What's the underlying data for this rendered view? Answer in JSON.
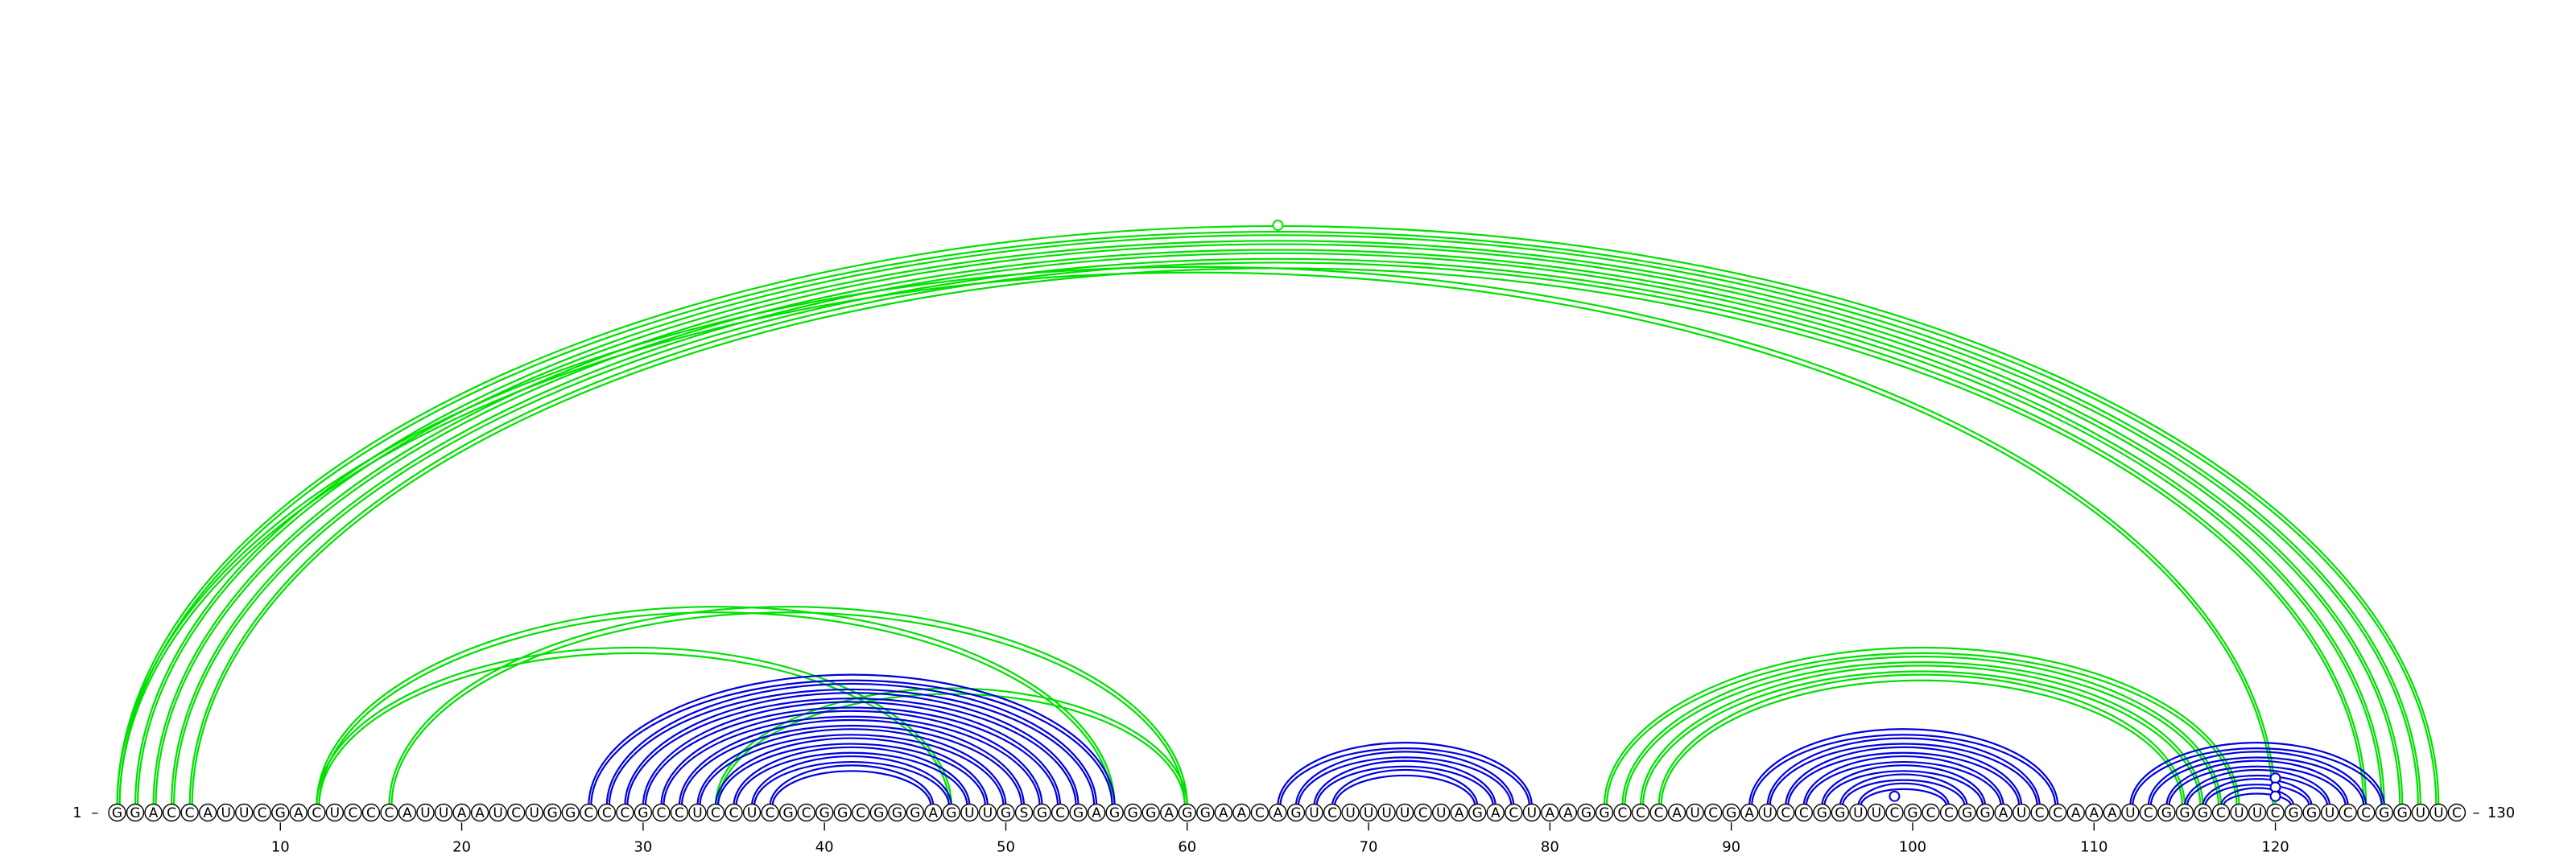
{
  "diagram": {
    "sequence": "GGACCAUUCGACUCCCAUUAAUCUGGCCCGCCUCCUCGCGGCGGGAGUUGSGCGAGGGAGGAACAGUCUUUUCUAGACUAAGGCCCAUCGAUCCGGUUCGCCGGAUCCAAAUCGGGCUUCGGUCCGGUUC",
    "start_label": "1",
    "end_label": "130",
    "length": 130,
    "tick_labels": [
      10,
      20,
      30,
      40,
      50,
      60,
      70,
      80,
      90,
      100,
      110,
      120
    ],
    "colors": {
      "blue": "#0000e0",
      "green": "#00e000"
    },
    "blue_helices": [
      {
        "i": 27,
        "j": 56,
        "n": 11
      },
      {
        "i": 65,
        "j": 79,
        "n": 4
      },
      {
        "i": 91,
        "j": 108,
        "n": 7
      },
      {
        "i": 112,
        "j": 126,
        "n": 6
      }
    ],
    "green_helices": [
      {
        "i": 1,
        "j": 129,
        "n": 5
      },
      {
        "i": 12,
        "j": 56,
        "n": 1
      },
      {
        "i": 16,
        "j": 60,
        "n": 1
      },
      {
        "i": 34,
        "j": 60,
        "n": 1
      },
      {
        "i": 12,
        "j": 47,
        "n": 1
      },
      {
        "i": 83,
        "j": 118,
        "n": 4
      },
      {
        "i": 1,
        "j": 120,
        "n": 1
      }
    ],
    "markers": [
      {
        "i": 1,
        "j": 129,
        "color": "green"
      },
      {
        "i": 117,
        "j": 123,
        "color": "blue"
      },
      {
        "i": 118,
        "j": 122,
        "color": "blue"
      },
      {
        "i": 119,
        "j": 121,
        "color": "blue"
      },
      {
        "i": 98,
        "j": 100,
        "color": "blue"
      }
    ]
  }
}
